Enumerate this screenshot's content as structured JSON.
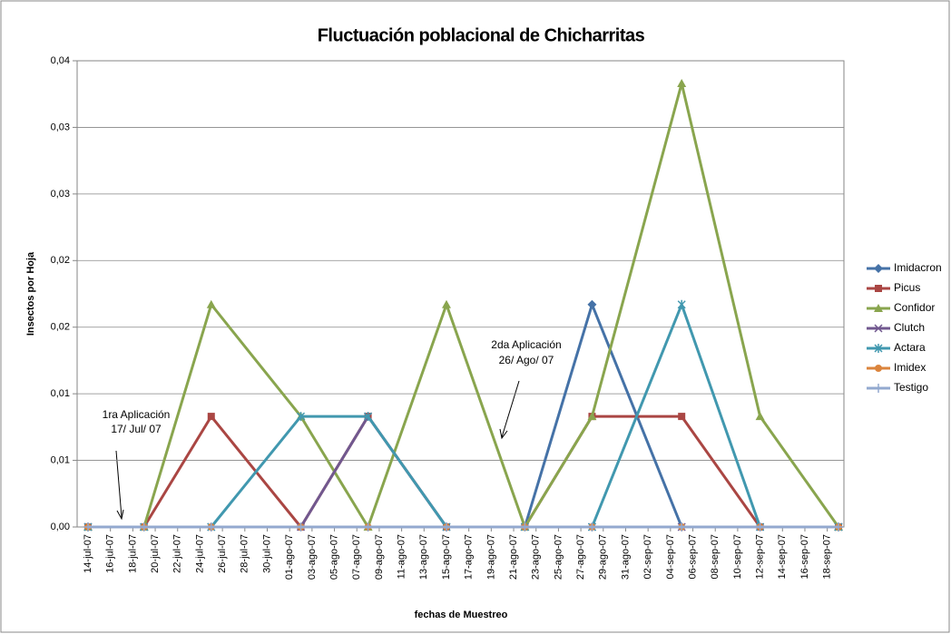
{
  "chart_data": {
    "type": "line",
    "title": "Fluctuación poblacional de Chicharritas",
    "y_label": "Insectos por Hoja",
    "x_label": "fechas de Muestreo",
    "annotations": [
      [
        "1ra Aplicación",
        "17/ Jul/ 07"
      ],
      [
        "2da Aplicación",
        "26/ Ago/ 07"
      ]
    ],
    "x": [
      "2007-07-14",
      "2007-07-19",
      "2007-07-25",
      "2007-08-02",
      "2007-08-08",
      "2007-08-15",
      "2007-08-22",
      "2007-08-28",
      "2007-09-05",
      "2007-09-12",
      "2007-09-19"
    ],
    "xlim": [
      "2007-07-14",
      "2007-09-19"
    ],
    "xticks": [
      {
        "value": "2007-07-14",
        "label": "14-jul-07"
      },
      {
        "value": "2007-07-16",
        "label": "16-jul-07"
      },
      {
        "value": "2007-07-18",
        "label": "18-jul-07"
      },
      {
        "value": "2007-07-20",
        "label": "20-jul-07"
      },
      {
        "value": "2007-07-22",
        "label": "22-jul-07"
      },
      {
        "value": "2007-07-24",
        "label": "24-jul-07"
      },
      {
        "value": "2007-07-26",
        "label": "26-jul-07"
      },
      {
        "value": "2007-07-28",
        "label": "28-jul-07"
      },
      {
        "value": "2007-07-30",
        "label": "30-jul-07"
      },
      {
        "value": "2007-08-01",
        "label": "01-ago-07"
      },
      {
        "value": "2007-08-03",
        "label": "03-ago-07"
      },
      {
        "value": "2007-08-05",
        "label": "05-ago-07"
      },
      {
        "value": "2007-08-07",
        "label": "07-ago-07"
      },
      {
        "value": "2007-08-09",
        "label": "09-ago-07"
      },
      {
        "value": "2007-08-11",
        "label": "11-ago-07"
      },
      {
        "value": "2007-08-13",
        "label": "13-ago-07"
      },
      {
        "value": "2007-08-15",
        "label": "15-ago-07"
      },
      {
        "value": "2007-08-17",
        "label": "17-ago-07"
      },
      {
        "value": "2007-08-19",
        "label": "19-ago-07"
      },
      {
        "value": "2007-08-21",
        "label": "21-ago-07"
      },
      {
        "value": "2007-08-23",
        "label": "23-ago-07"
      },
      {
        "value": "2007-08-25",
        "label": "25-ago-07"
      },
      {
        "value": "2007-08-27",
        "label": "27-ago-07"
      },
      {
        "value": "2007-08-29",
        "label": "29-ago-07"
      },
      {
        "value": "2007-08-31",
        "label": "31-ago-07"
      },
      {
        "value": "2007-09-02",
        "label": "02-sep-07"
      },
      {
        "value": "2007-09-04",
        "label": "04-sep-07"
      },
      {
        "value": "2007-09-06",
        "label": "06-sep-07"
      },
      {
        "value": "2007-09-08",
        "label": "08-sep-07"
      },
      {
        "value": "2007-09-10",
        "label": "10-sep-07"
      },
      {
        "value": "2007-09-12",
        "label": "12-sep-07"
      },
      {
        "value": "2007-09-14",
        "label": "14-sep-07"
      },
      {
        "value": "2007-09-16",
        "label": "16-sep-07"
      },
      {
        "value": "2007-09-18",
        "label": "18-sep-07"
      }
    ],
    "ylim": [
      0,
      0.035
    ],
    "yticks": [
      {
        "value": 0,
        "label": "0,00"
      },
      {
        "value": 0.005,
        "label": "0,01"
      },
      {
        "value": 0.01,
        "label": "0,01"
      },
      {
        "value": 0.015,
        "label": "0,02"
      },
      {
        "value": 0.02,
        "label": "0,02"
      },
      {
        "value": 0.025,
        "label": "0,03"
      },
      {
        "value": 0.03,
        "label": "0,03"
      },
      {
        "value": 0.035,
        "label": "0,04"
      }
    ],
    "grid": true,
    "legend": "right",
    "series": [
      {
        "name": "Imidacron",
        "color": "#4572a7",
        "marker": "diamond",
        "values": [
          0,
          0,
          0,
          0,
          0,
          0,
          0,
          0.0167,
          0,
          0,
          0
        ]
      },
      {
        "name": "Picus",
        "color": "#aa4643",
        "marker": "square",
        "values": [
          0,
          0,
          0.0083,
          0,
          0.0083,
          0,
          0,
          0.0083,
          0.0083,
          0,
          0
        ]
      },
      {
        "name": "Confidor",
        "color": "#89a54e",
        "marker": "triangle",
        "values": [
          0,
          0,
          0.0167,
          0.0083,
          0,
          0.0167,
          0,
          0.0083,
          0.0333,
          0.0083,
          0
        ]
      },
      {
        "name": "Clutch",
        "color": "#71588f",
        "marker": "x",
        "values": [
          0,
          0,
          0,
          0,
          0.0083,
          0,
          0,
          0,
          0,
          0,
          0
        ]
      },
      {
        "name": "Actara",
        "color": "#4198af",
        "marker": "star",
        "values": [
          0,
          0,
          0,
          0.0083,
          0.0083,
          0,
          0,
          0,
          0.0167,
          0,
          0
        ]
      },
      {
        "name": "Imidex",
        "color": "#db843d",
        "marker": "circle",
        "values": [
          0,
          0,
          0,
          0,
          0,
          0,
          0,
          0,
          0,
          0,
          0
        ]
      },
      {
        "name": "Testigo",
        "color": "#93a9cf",
        "marker": "plus",
        "values": [
          0,
          0,
          0,
          0,
          0,
          0,
          0,
          0,
          0,
          0,
          0
        ]
      }
    ]
  }
}
